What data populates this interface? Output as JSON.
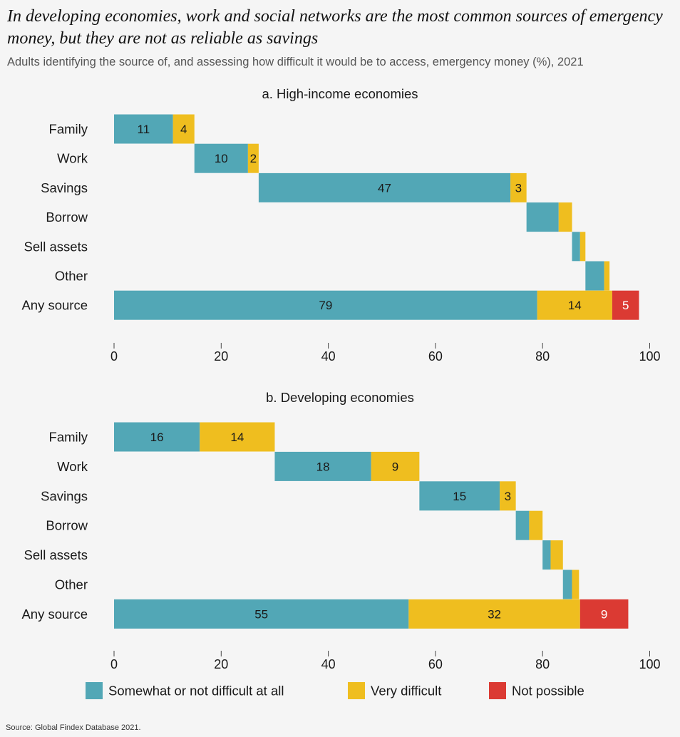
{
  "header": {
    "title": "In developing economies, work and social networks are the most common sources of emergency money, but they are not as reliable as savings",
    "subtitle": "Adults identifying the source of, and assessing how difficult it would be to access, emergency money (%), 2021"
  },
  "footer": {
    "source": "Source: Global Findex Database 2021."
  },
  "colors": {
    "somewhat": "#52a7b6",
    "very": "#efbe1f",
    "not_possible": "#db3a33"
  },
  "legend": [
    {
      "key": "somewhat",
      "label": "Somewhat or not difficult at all"
    },
    {
      "key": "very",
      "label": "Very difficult"
    },
    {
      "key": "not_possible",
      "label": "Not possible"
    }
  ],
  "chart_data": [
    {
      "type": "bar",
      "orientation": "horizontal",
      "layout": "waterfall-stacked",
      "title": "a. High-income economies",
      "categories": [
        "Family",
        "Work",
        "Savings",
        "Borrow",
        "Sell assets",
        "Other",
        "Any source"
      ],
      "xlim": [
        0,
        100
      ],
      "xticks": [
        0,
        20,
        40,
        60,
        80,
        100
      ],
      "series": [
        {
          "name": "Somewhat or not difficult at all",
          "key": "somewhat",
          "values": [
            11,
            10,
            47,
            6,
            1.5,
            3.5,
            79
          ]
        },
        {
          "name": "Very difficult",
          "key": "very",
          "values": [
            4,
            2,
            3,
            2.5,
            1,
            1,
            14
          ]
        },
        {
          "name": "Not possible",
          "key": "not_possible",
          "values": [
            0,
            0,
            0,
            0,
            0,
            0,
            5
          ]
        }
      ],
      "labels": [
        [
          "11",
          "10",
          "47",
          "",
          "",
          "",
          "79"
        ],
        [
          "4",
          "2",
          "3",
          "",
          "",
          "",
          "14"
        ],
        [
          "",
          "",
          "",
          "",
          "",
          "",
          "5"
        ]
      ]
    },
    {
      "type": "bar",
      "orientation": "horizontal",
      "layout": "waterfall-stacked",
      "title": "b. Developing economies",
      "categories": [
        "Family",
        "Work",
        "Savings",
        "Borrow",
        "Sell assets",
        "Other",
        "Any source"
      ],
      "xlim": [
        0,
        100
      ],
      "xticks": [
        0,
        20,
        40,
        60,
        80,
        100
      ],
      "series": [
        {
          "name": "Somewhat or not difficult at all",
          "key": "somewhat",
          "values": [
            16,
            18,
            15,
            2.5,
            1.5,
            1.7,
            55
          ]
        },
        {
          "name": "Very difficult",
          "key": "very",
          "values": [
            14,
            9,
            3,
            2.5,
            2.3,
            1.3,
            32
          ]
        },
        {
          "name": "Not possible",
          "key": "not_possible",
          "values": [
            0,
            0,
            0,
            0,
            0,
            0,
            9
          ]
        }
      ],
      "labels": [
        [
          "16",
          "18",
          "15",
          "",
          "",
          "",
          "55"
        ],
        [
          "14",
          "9",
          "3",
          "",
          "",
          "",
          "32"
        ],
        [
          "",
          "",
          "",
          "",
          "",
          "",
          "9"
        ]
      ]
    }
  ]
}
